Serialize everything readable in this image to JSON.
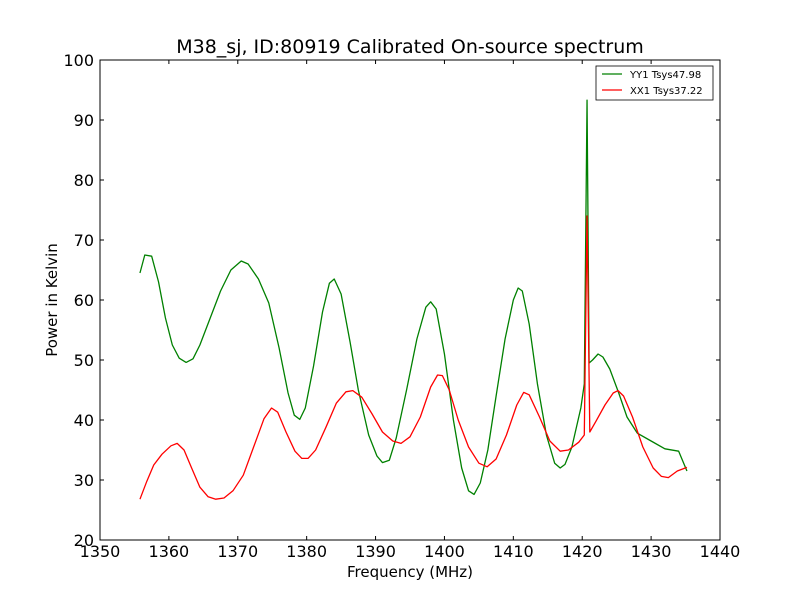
{
  "chart_data": {
    "type": "line",
    "title": "M38_sj, ID:80919 Calibrated On-source spectrum",
    "xlabel": "Frequency (MHz)",
    "ylabel": "Power in Kelvin",
    "xlim": [
      1350,
      1440
    ],
    "ylim": [
      20,
      100
    ],
    "xticks": [
      1350,
      1360,
      1370,
      1380,
      1390,
      1400,
      1410,
      1420,
      1430,
      1440
    ],
    "yticks": [
      20,
      30,
      40,
      50,
      60,
      70,
      80,
      90,
      100
    ],
    "grid": false,
    "legend_position": "top-right",
    "series": [
      {
        "name": "YY1 Tsys47.98",
        "color": "#008000",
        "points": [
          [
            1355.8,
            64.5
          ],
          [
            1356.5,
            67.5
          ],
          [
            1357.5,
            67.3
          ],
          [
            1358.5,
            63.0
          ],
          [
            1359.5,
            57.0
          ],
          [
            1360.5,
            52.5
          ],
          [
            1361.5,
            50.3
          ],
          [
            1362.5,
            49.6
          ],
          [
            1363.5,
            50.2
          ],
          [
            1364.5,
            52.5
          ],
          [
            1366.0,
            57.0
          ],
          [
            1367.5,
            61.5
          ],
          [
            1369.0,
            65.0
          ],
          [
            1370.5,
            66.5
          ],
          [
            1371.5,
            66.0
          ],
          [
            1373.0,
            63.5
          ],
          [
            1374.5,
            59.5
          ],
          [
            1376.0,
            52.0
          ],
          [
            1377.3,
            44.5
          ],
          [
            1378.2,
            40.8
          ],
          [
            1379.0,
            40.1
          ],
          [
            1379.8,
            42.0
          ],
          [
            1381.0,
            49.0
          ],
          [
            1382.3,
            58.0
          ],
          [
            1383.3,
            62.8
          ],
          [
            1384.0,
            63.5
          ],
          [
            1385.0,
            61.0
          ],
          [
            1386.3,
            53.0
          ],
          [
            1387.5,
            45.0
          ],
          [
            1389.0,
            37.5
          ],
          [
            1390.2,
            34.0
          ],
          [
            1391.0,
            32.9
          ],
          [
            1392.0,
            33.3
          ],
          [
            1393.0,
            37.0
          ],
          [
            1394.5,
            45.0
          ],
          [
            1396.0,
            53.5
          ],
          [
            1397.3,
            58.8
          ],
          [
            1398.0,
            59.7
          ],
          [
            1398.8,
            58.5
          ],
          [
            1400.0,
            51.0
          ],
          [
            1401.3,
            40.0
          ],
          [
            1402.5,
            32.0
          ],
          [
            1403.5,
            28.2
          ],
          [
            1404.3,
            27.6
          ],
          [
            1405.2,
            29.5
          ],
          [
            1406.3,
            35.0
          ],
          [
            1407.5,
            44.0
          ],
          [
            1408.8,
            53.5
          ],
          [
            1410.0,
            60.0
          ],
          [
            1410.7,
            62.0
          ],
          [
            1411.3,
            61.5
          ],
          [
            1412.3,
            56.0
          ],
          [
            1413.5,
            46.0
          ],
          [
            1414.8,
            37.5
          ],
          [
            1416.0,
            32.8
          ],
          [
            1416.8,
            32.0
          ],
          [
            1417.5,
            32.6
          ],
          [
            1418.5,
            35.5
          ],
          [
            1419.8,
            42.0
          ],
          [
            1420.3,
            46.0
          ],
          [
            1420.7,
            93.3
          ],
          [
            1421.0,
            49.5
          ],
          [
            1421.5,
            50.0
          ],
          [
            1422.3,
            51.0
          ],
          [
            1423.0,
            50.5
          ],
          [
            1424.0,
            48.5
          ],
          [
            1425.3,
            44.5
          ],
          [
            1426.5,
            40.5
          ],
          [
            1428.0,
            37.8
          ],
          [
            1430.0,
            36.5
          ],
          [
            1432.0,
            35.2
          ],
          [
            1434.0,
            34.8
          ],
          [
            1435.2,
            31.5
          ]
        ]
      },
      {
        "name": "XX1 Tsys37.22",
        "color": "#ff0000",
        "points": [
          [
            1355.8,
            26.8
          ],
          [
            1356.8,
            29.8
          ],
          [
            1357.8,
            32.5
          ],
          [
            1359.0,
            34.3
          ],
          [
            1360.3,
            35.7
          ],
          [
            1361.2,
            36.1
          ],
          [
            1362.2,
            35.0
          ],
          [
            1363.3,
            32.0
          ],
          [
            1364.5,
            28.8
          ],
          [
            1365.7,
            27.2
          ],
          [
            1366.8,
            26.8
          ],
          [
            1368.0,
            27.0
          ],
          [
            1369.3,
            28.2
          ],
          [
            1370.8,
            30.8
          ],
          [
            1372.3,
            35.5
          ],
          [
            1373.8,
            40.2
          ],
          [
            1374.9,
            42.0
          ],
          [
            1375.8,
            41.3
          ],
          [
            1377.0,
            38.0
          ],
          [
            1378.3,
            34.8
          ],
          [
            1379.3,
            33.6
          ],
          [
            1380.2,
            33.6
          ],
          [
            1381.3,
            35.0
          ],
          [
            1382.8,
            38.8
          ],
          [
            1384.3,
            42.8
          ],
          [
            1385.7,
            44.7
          ],
          [
            1386.7,
            44.9
          ],
          [
            1388.0,
            43.8
          ],
          [
            1389.5,
            41.0
          ],
          [
            1391.0,
            38.0
          ],
          [
            1392.5,
            36.5
          ],
          [
            1393.7,
            36.1
          ],
          [
            1395.0,
            37.2
          ],
          [
            1396.5,
            40.5
          ],
          [
            1398.0,
            45.5
          ],
          [
            1399.0,
            47.5
          ],
          [
            1399.7,
            47.4
          ],
          [
            1400.7,
            45.0
          ],
          [
            1402.0,
            40.0
          ],
          [
            1403.5,
            35.5
          ],
          [
            1405.0,
            32.8
          ],
          [
            1406.2,
            32.2
          ],
          [
            1407.5,
            33.5
          ],
          [
            1409.0,
            37.5
          ],
          [
            1410.5,
            42.5
          ],
          [
            1411.5,
            44.6
          ],
          [
            1412.3,
            44.2
          ],
          [
            1413.8,
            40.5
          ],
          [
            1415.3,
            36.5
          ],
          [
            1416.8,
            34.8
          ],
          [
            1418.0,
            35.0
          ],
          [
            1419.5,
            36.3
          ],
          [
            1420.3,
            37.5
          ],
          [
            1420.7,
            74.0
          ],
          [
            1421.1,
            38.0
          ],
          [
            1422.0,
            39.8
          ],
          [
            1423.3,
            42.5
          ],
          [
            1424.5,
            44.5
          ],
          [
            1425.2,
            44.9
          ],
          [
            1426.0,
            44.0
          ],
          [
            1427.3,
            40.5
          ],
          [
            1428.8,
            35.5
          ],
          [
            1430.3,
            32.0
          ],
          [
            1431.5,
            30.6
          ],
          [
            1432.5,
            30.4
          ],
          [
            1433.8,
            31.5
          ],
          [
            1435.2,
            32.1
          ]
        ]
      }
    ]
  }
}
